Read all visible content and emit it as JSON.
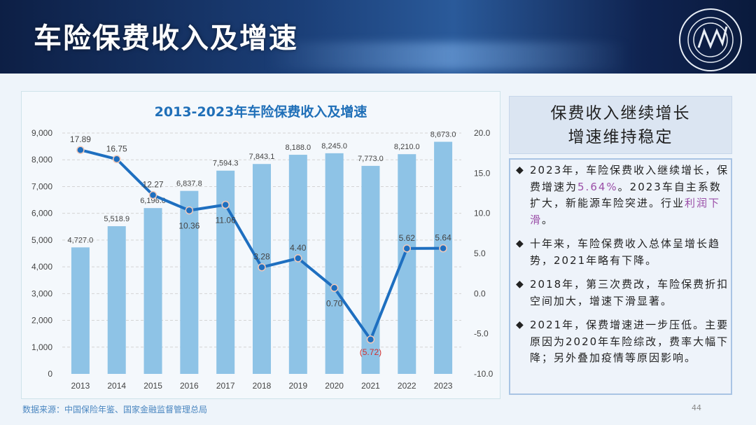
{
  "header": {
    "title": "车险保费收入及增速"
  },
  "chart_data": {
    "type": "bar+line",
    "title": "2013-2023年车险保费收入及增速",
    "categories": [
      "2013",
      "2014",
      "2015",
      "2016",
      "2017",
      "2018",
      "2019",
      "2020",
      "2021",
      "2022",
      "2023"
    ],
    "series": [
      {
        "name": "车险保费收入",
        "type": "bar",
        "axis": "left",
        "values": [
          4727.0,
          5518.9,
          6196.0,
          6837.8,
          7594.3,
          7843.1,
          8188.0,
          8245.0,
          7773.0,
          8210.0,
          8673.0
        ],
        "labels": [
          "4,727.0",
          "5,518.9",
          "6,196.0",
          "6,837.8",
          "7,594.3",
          "7,843.1",
          "8,188.0",
          "8,245.0",
          "7,773.0",
          "8,210.0",
          "8,673.0"
        ]
      },
      {
        "name": "增速",
        "type": "line",
        "axis": "right",
        "values": [
          17.89,
          16.75,
          12.27,
          10.36,
          11.06,
          3.28,
          4.4,
          0.7,
          -5.72,
          5.62,
          5.64
        ],
        "labels": [
          "17.89",
          "16.75",
          "12.27",
          "10.36",
          "11.06",
          "3.28",
          "4.40",
          "0.70",
          "(5.72)",
          "5.62",
          "5.64"
        ]
      }
    ],
    "ylim_left": [
      0,
      9000
    ],
    "yticks_left": [
      "0",
      "1,000",
      "2,000",
      "3,000",
      "4,000",
      "5,000",
      "6,000",
      "7,000",
      "8,000",
      "9,000"
    ],
    "ylim_right": [
      -10,
      20
    ],
    "yticks_right": [
      "-10.0",
      "-5.0",
      "0.0",
      "5.0",
      "10.0",
      "15.0",
      "20.0"
    ],
    "colors": {
      "bar": "#8ec3e6",
      "line": "#1e6fc0",
      "negative_label": "#d03030"
    },
    "grid": true
  },
  "source": "数据来源：中国保险年鉴、国家金融监督管理总局",
  "page_number": "44",
  "right": {
    "title_lines": [
      "保费收入继续增长",
      "增速维持稳定"
    ],
    "bullets": [
      {
        "parts": [
          "2023年，车险保费收入继续增长，保费增速为",
          "5.64%",
          "。2023车自主系数扩大，新能源车险突进。行业",
          "利润下滑",
          "。"
        ]
      },
      {
        "parts": [
          "十年来，车险保费收入总体呈增长趋势，2021年略有下降。"
        ]
      },
      {
        "parts": [
          "2018年，第三次费改，车险保费折扣空间加大，增速下滑显著。"
        ]
      },
      {
        "parts": [
          "2021年，保费增速进一步压低。主要原因为2020年车险综改，费率大幅下降；另外叠加疫情等原因影响。"
        ]
      }
    ],
    "bullet_symbol": "◆"
  }
}
